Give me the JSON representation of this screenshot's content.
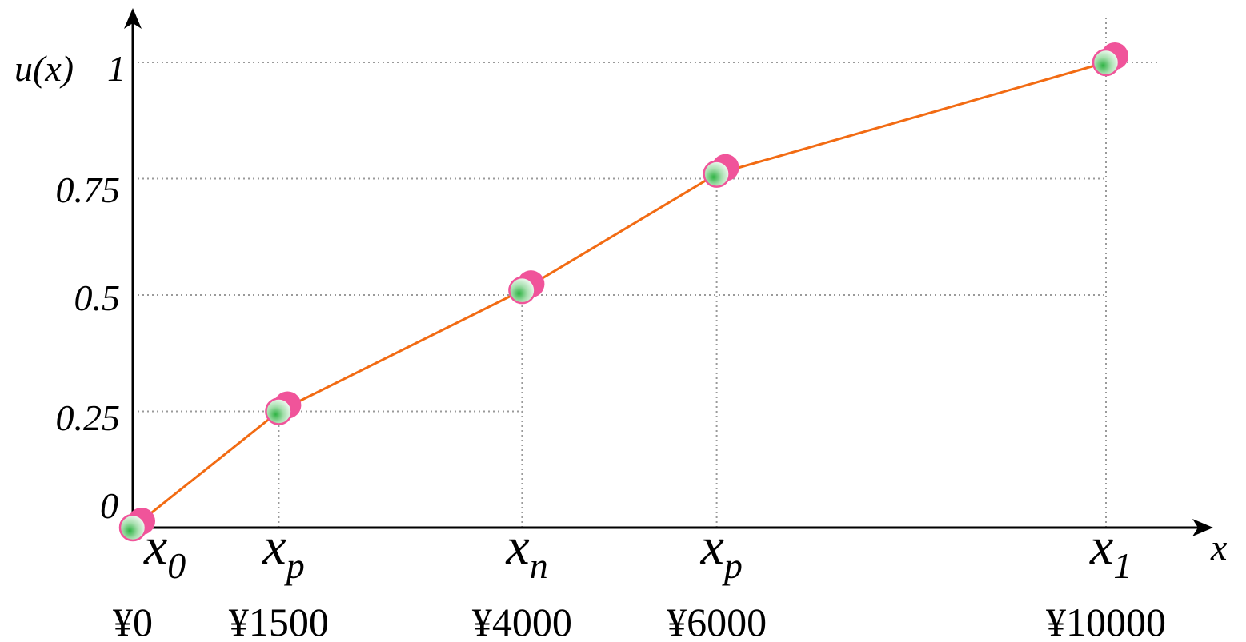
{
  "chart_data": {
    "type": "line",
    "ylabel": "u(x)",
    "xlabel": "x",
    "yticks": [
      "0",
      "0.25",
      "0.5",
      "0.75",
      "1"
    ],
    "ytick_values": [
      0,
      0.25,
      0.5,
      0.75,
      1
    ],
    "ylim": [
      0,
      1.12
    ],
    "xlim": [
      0,
      10800
    ],
    "x": [
      0,
      1500,
      4000,
      6000,
      10000
    ],
    "y": [
      0,
      0.25,
      0.51,
      0.76,
      1
    ],
    "point_labels": [
      {
        "main": "x",
        "sub": "0"
      },
      {
        "main": "x",
        "sub": "p"
      },
      {
        "main": "x",
        "sub": "n"
      },
      {
        "main": "x",
        "sub": "p"
      },
      {
        "main": "x",
        "sub": "1"
      }
    ],
    "value_labels": [
      "¥0",
      "¥1500",
      "¥4000",
      "¥6000",
      "¥10000"
    ],
    "grid": "dotted guides",
    "colors": {
      "line": "#f26b13",
      "axis": "#000000",
      "guide": "#9a9a9a",
      "marker_pink": "#f0549a",
      "marker_green": "#3cbd4c"
    }
  }
}
